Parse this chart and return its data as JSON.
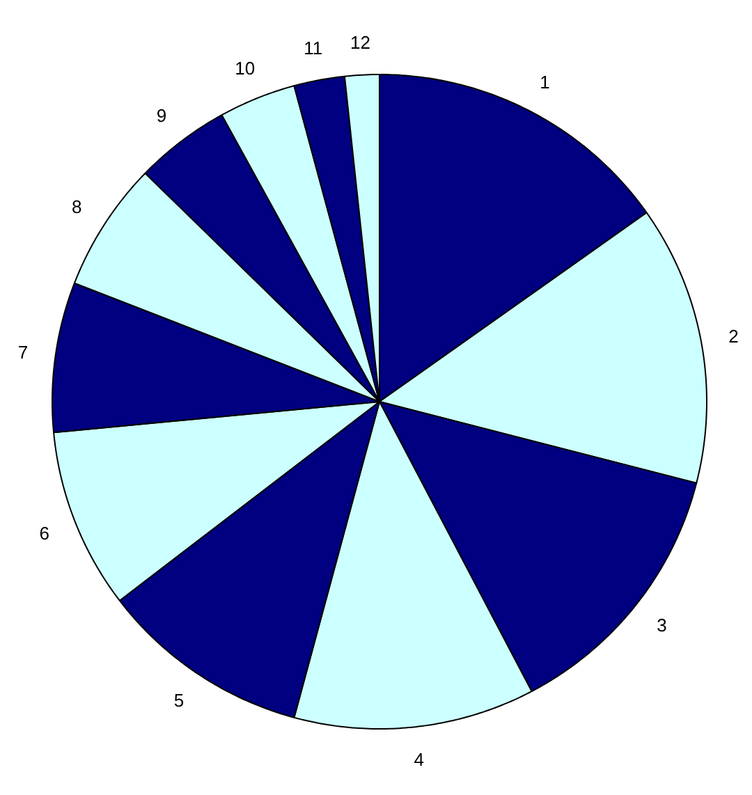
{
  "chart_data": {
    "type": "pie",
    "categories": [
      "1",
      "2",
      "3",
      "4",
      "5",
      "6",
      "7",
      "8",
      "9",
      "10",
      "11",
      "12"
    ],
    "values": [
      15.2,
      13.8,
      13.3,
      11.9,
      10.4,
      8.9,
      7.4,
      6.4,
      4.7,
      3.8,
      2.5,
      1.7
    ],
    "colors": [
      "#000080",
      "#ccffff",
      "#000080",
      "#ccffff",
      "#000080",
      "#ccffff",
      "#000080",
      "#ccffff",
      "#000080",
      "#ccffff",
      "#000080",
      "#ccffff"
    ]
  }
}
